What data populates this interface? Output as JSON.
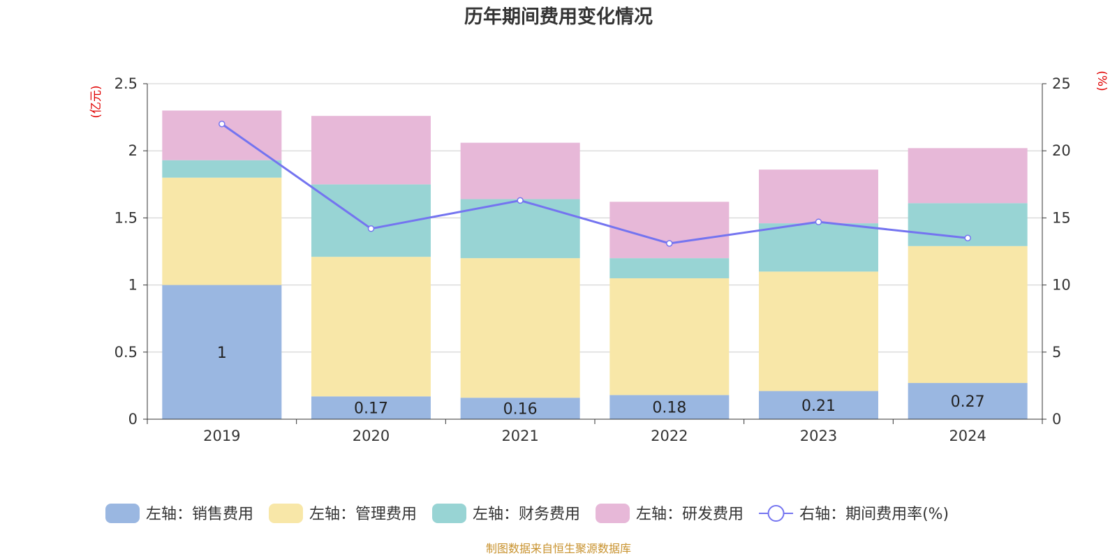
{
  "colors": {
    "sales": "#9ab7e1",
    "admin": "#f8e7a8",
    "finance": "#98d4d4",
    "rnd": "#e7b8d8",
    "rate": "#7474f0",
    "grid": "#cccccc",
    "axis": "#333333",
    "unit": "#e00000",
    "source": "#c8922e"
  },
  "chart_data": {
    "type": "bar",
    "stacked": true,
    "title": "历年期间费用变化情况",
    "categories": [
      "2019",
      "2020",
      "2021",
      "2022",
      "2023",
      "2024"
    ],
    "y_left": {
      "unit_label": "(亿元)",
      "ylim": [
        0,
        2.5
      ],
      "ticks": [
        "0",
        "0.5",
        "1",
        "1.5",
        "2",
        "2.5"
      ]
    },
    "y_right": {
      "unit_label": "(%)",
      "ylim": [
        0,
        25
      ],
      "ticks": [
        "0",
        "5",
        "10",
        "15",
        "20",
        "25"
      ]
    },
    "grid": true,
    "legend_position": "bottom",
    "series": [
      {
        "key": "sales",
        "name": "左轴：销售费用",
        "type": "bar",
        "axis": "left",
        "values": [
          1.0,
          0.17,
          0.16,
          0.18,
          0.21,
          0.27
        ],
        "labels": [
          "1",
          "0.17",
          "0.16",
          "0.18",
          "0.21",
          "0.27"
        ]
      },
      {
        "key": "admin",
        "name": "左轴：管理费用",
        "type": "bar",
        "axis": "left",
        "values": [
          0.8,
          1.04,
          1.04,
          0.87,
          0.89,
          1.02
        ]
      },
      {
        "key": "finance",
        "name": "左轴：财务费用",
        "type": "bar",
        "axis": "left",
        "values": [
          0.13,
          0.54,
          0.44,
          0.15,
          0.36,
          0.32
        ]
      },
      {
        "key": "rnd",
        "name": "左轴：研发费用",
        "type": "bar",
        "axis": "left",
        "values": [
          0.37,
          0.51,
          0.42,
          0.42,
          0.4,
          0.41
        ]
      },
      {
        "key": "rate",
        "name": "右轴：期间费用率(%)",
        "type": "line",
        "axis": "right",
        "values": [
          22.0,
          14.2,
          16.3,
          13.1,
          14.7,
          13.5
        ]
      }
    ],
    "source": "制图数据来自恒生聚源数据库"
  }
}
